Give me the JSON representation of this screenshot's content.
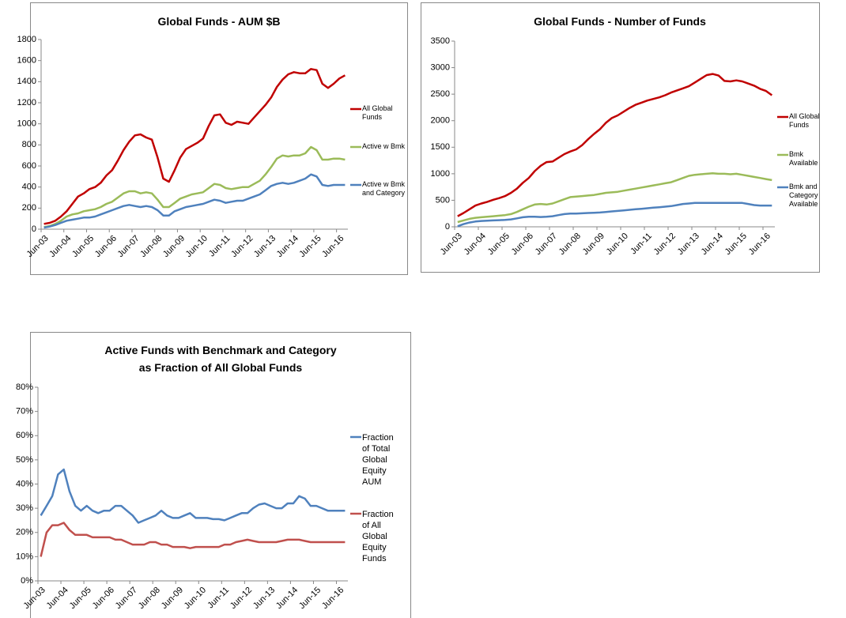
{
  "chart_data": [
    {
      "type": "line",
      "title": "Global Funds - AUM $B",
      "categories": [
        "Jun-03",
        null,
        null,
        null,
        "Jun-04",
        null,
        null,
        null,
        "Jun-05",
        null,
        null,
        null,
        "Jun-06",
        null,
        null,
        null,
        "Jun-07",
        null,
        null,
        null,
        "Jun-08",
        null,
        null,
        null,
        "Jun-09",
        null,
        null,
        null,
        "Jun-10",
        null,
        null,
        null,
        "Jun-11",
        null,
        null,
        null,
        "Jun-12",
        null,
        null,
        null,
        "Jun-13",
        null,
        null,
        null,
        "Jun-14",
        null,
        null,
        null,
        "Jun-15",
        null,
        null,
        null,
        "Jun-16",
        null
      ],
      "ylim": [
        0,
        1800
      ],
      "yticks": [
        0,
        200,
        400,
        600,
        800,
        1000,
        1200,
        1400,
        1600,
        1800
      ],
      "series": [
        {
          "name": "All Global Funds",
          "color": "#c00000",
          "values": [
            50,
            60,
            80,
            120,
            170,
            240,
            310,
            340,
            380,
            400,
            440,
            510,
            560,
            650,
            750,
            830,
            890,
            900,
            870,
            850,
            680,
            480,
            450,
            560,
            680,
            760,
            790,
            820,
            860,
            980,
            1080,
            1090,
            1010,
            990,
            1020,
            1010,
            1000,
            1060,
            1120,
            1180,
            1250,
            1350,
            1420,
            1470,
            1490,
            1480,
            1480,
            1520,
            1510,
            1380,
            1340,
            1380,
            1430,
            1460
          ]
        },
        {
          "name": "Active w Bmk",
          "color": "#9bbb59",
          "values": [
            20,
            30,
            50,
            80,
            120,
            140,
            150,
            170,
            180,
            190,
            210,
            240,
            260,
            300,
            340,
            360,
            360,
            340,
            350,
            340,
            280,
            210,
            210,
            250,
            290,
            310,
            330,
            340,
            350,
            390,
            430,
            420,
            390,
            380,
            390,
            400,
            400,
            430,
            460,
            520,
            590,
            670,
            700,
            690,
            700,
            700,
            720,
            780,
            750,
            660,
            660,
            670,
            670,
            660
          ]
        },
        {
          "name": "Active w Bmk and Category",
          "color": "#4f81bd",
          "values": [
            15,
            25,
            40,
            60,
            80,
            90,
            100,
            110,
            110,
            120,
            140,
            160,
            180,
            200,
            220,
            230,
            220,
            210,
            220,
            210,
            180,
            130,
            130,
            170,
            190,
            210,
            220,
            230,
            240,
            260,
            280,
            270,
            250,
            260,
            270,
            270,
            290,
            310,
            330,
            370,
            410,
            430,
            440,
            430,
            440,
            460,
            480,
            520,
            500,
            420,
            410,
            420,
            420,
            420
          ]
        }
      ]
    },
    {
      "type": "line",
      "title": "Global Funds - Number of Funds",
      "categories": [
        "Jun-03",
        null,
        null,
        null,
        "Jun-04",
        null,
        null,
        null,
        "Jun-05",
        null,
        null,
        null,
        "Jun-06",
        null,
        null,
        null,
        "Jun-07",
        null,
        null,
        null,
        "Jun-08",
        null,
        null,
        null,
        "Jun-09",
        null,
        null,
        null,
        "Jun-10",
        null,
        null,
        null,
        "Jun-11",
        null,
        null,
        null,
        "Jun-12",
        null,
        null,
        null,
        "Jun-13",
        null,
        null,
        null,
        "Jun-14",
        null,
        null,
        null,
        "Jun-15",
        null,
        null,
        null,
        "Jun-16",
        null
      ],
      "ylim": [
        0,
        3500
      ],
      "yticks": [
        0,
        500,
        1000,
        1500,
        2000,
        2500,
        3000,
        3500
      ],
      "series": [
        {
          "name": "All Global Funds",
          "color": "#c00000",
          "values": [
            200,
            260,
            330,
            400,
            440,
            470,
            510,
            540,
            580,
            640,
            720,
            830,
            920,
            1050,
            1150,
            1220,
            1230,
            1300,
            1370,
            1420,
            1460,
            1540,
            1650,
            1750,
            1840,
            1960,
            2050,
            2100,
            2170,
            2240,
            2300,
            2340,
            2380,
            2410,
            2440,
            2480,
            2530,
            2570,
            2610,
            2650,
            2720,
            2790,
            2860,
            2880,
            2850,
            2750,
            2740,
            2760,
            2740,
            2700,
            2660,
            2600,
            2560,
            2480
          ]
        },
        {
          "name": "Bmk Available",
          "color": "#9bbb59",
          "values": [
            90,
            120,
            150,
            170,
            180,
            190,
            200,
            210,
            220,
            240,
            280,
            330,
            380,
            420,
            430,
            420,
            440,
            480,
            520,
            560,
            570,
            580,
            590,
            600,
            620,
            640,
            650,
            660,
            680,
            700,
            720,
            740,
            760,
            780,
            800,
            820,
            840,
            880,
            920,
            960,
            980,
            990,
            1000,
            1010,
            1000,
            1000,
            990,
            1000,
            980,
            960,
            940,
            920,
            900,
            880
          ]
        },
        {
          "name": "Bmk and Category Available",
          "color": "#4f81bd",
          "values": [
            10,
            50,
            80,
            100,
            110,
            115,
            120,
            125,
            130,
            140,
            160,
            180,
            190,
            190,
            185,
            190,
            200,
            220,
            240,
            250,
            250,
            255,
            260,
            265,
            270,
            280,
            290,
            300,
            310,
            320,
            330,
            340,
            350,
            360,
            370,
            380,
            390,
            410,
            430,
            440,
            450,
            450,
            450,
            450,
            450,
            450,
            450,
            450,
            450,
            430,
            410,
            400,
            400,
            400
          ]
        }
      ]
    },
    {
      "type": "line",
      "title": "Active Funds with Benchmark and Category as Fraction of All Global Funds",
      "categories": [
        "Jun-03",
        null,
        null,
        null,
        "Jun-04",
        null,
        null,
        null,
        "Jun-05",
        null,
        null,
        null,
        "Jun-06",
        null,
        null,
        null,
        "Jun-07",
        null,
        null,
        null,
        "Jun-08",
        null,
        null,
        null,
        "Jun-09",
        null,
        null,
        null,
        "Jun-10",
        null,
        null,
        null,
        "Jun-11",
        null,
        null,
        null,
        "Jun-12",
        null,
        null,
        null,
        "Jun-13",
        null,
        null,
        null,
        "Jun-14",
        null,
        null,
        null,
        "Jun-15",
        null,
        null,
        null,
        "Jun-16",
        null
      ],
      "ylim": [
        0,
        80
      ],
      "yticks": [
        {
          "value": 0,
          "label": "0%"
        },
        {
          "value": 10,
          "label": "10%"
        },
        {
          "value": 20,
          "label": "20%"
        },
        {
          "value": 30,
          "label": "30%"
        },
        {
          "value": 40,
          "label": "40%"
        },
        {
          "value": 50,
          "label": "50%"
        },
        {
          "value": 60,
          "label": "60%"
        },
        {
          "value": 70,
          "label": "70%"
        },
        {
          "value": 80,
          "label": "80%"
        }
      ],
      "series": [
        {
          "name": "Fraction of Total Global Equity AUM",
          "color": "#4f81bd",
          "values": [
            27,
            31,
            35,
            44,
            46,
            37,
            31,
            29,
            31,
            29,
            28,
            29,
            29,
            31,
            31,
            29,
            27,
            24,
            25,
            26,
            27,
            29,
            27,
            26,
            26,
            27,
            28,
            26,
            26,
            26,
            25.5,
            25.5,
            25,
            26,
            27,
            28,
            28,
            30,
            31.5,
            32,
            31,
            30,
            30,
            32,
            32,
            35,
            34,
            31,
            31,
            30,
            29,
            29,
            29,
            29
          ]
        },
        {
          "name": "Fraction of All Global Equity Funds",
          "color": "#c0504d",
          "values": [
            10,
            20,
            23,
            23,
            24,
            21,
            19,
            19,
            19,
            18,
            18,
            18,
            18,
            17,
            17,
            16,
            15,
            15,
            15,
            16,
            16,
            15,
            15,
            14,
            14,
            14,
            13.5,
            14,
            14,
            14,
            14,
            14,
            15,
            15,
            16,
            16.5,
            17,
            16.5,
            16,
            16,
            16,
            16,
            16.5,
            17,
            17,
            17,
            16.5,
            16,
            16,
            16,
            16,
            16,
            16,
            16
          ]
        }
      ]
    }
  ]
}
